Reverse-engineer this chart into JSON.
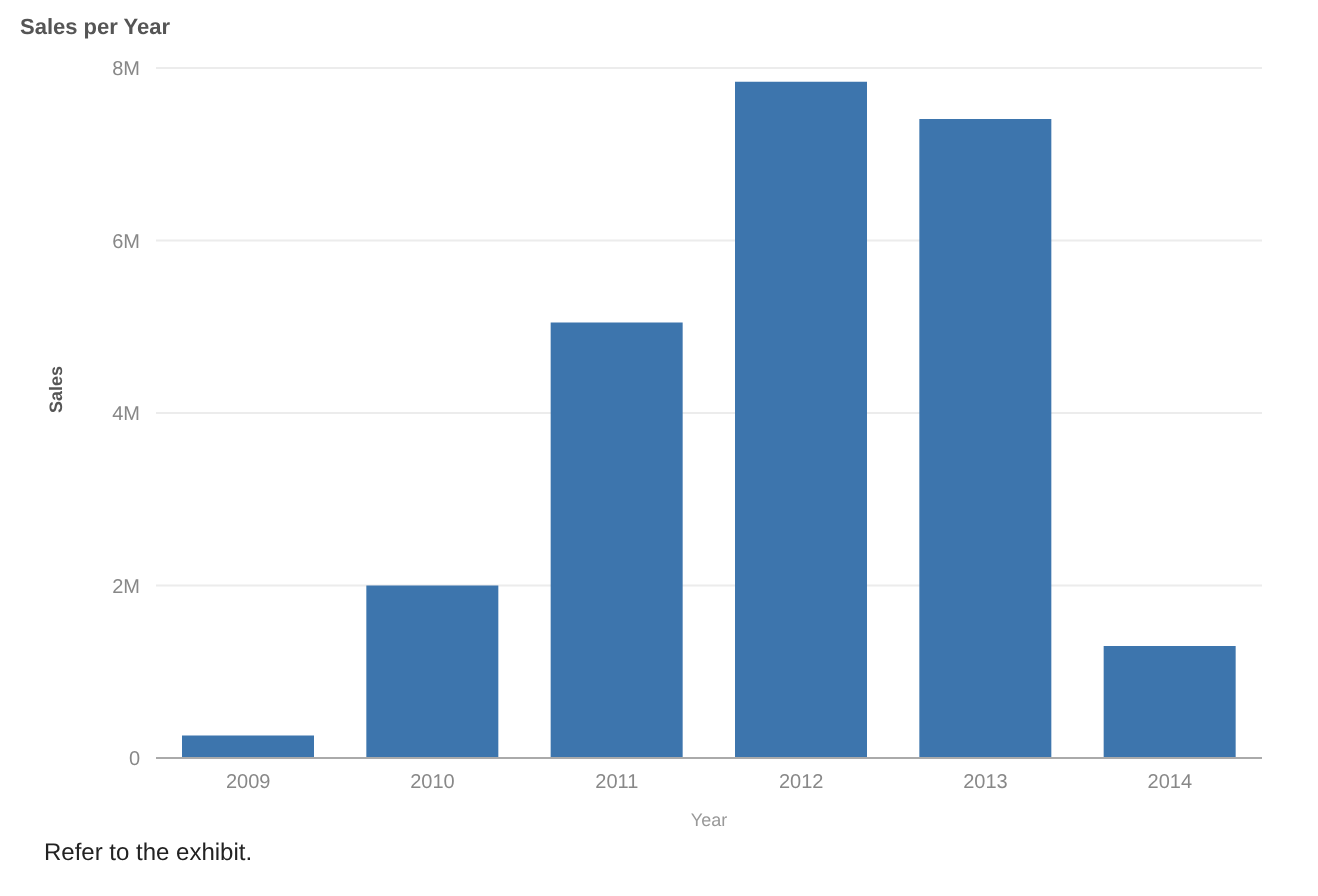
{
  "chart_data": {
    "type": "bar",
    "title": "Sales per Year",
    "xlabel": "Year",
    "ylabel": "Sales",
    "categories": [
      "2009",
      "2010",
      "2011",
      "2012",
      "2013",
      "2014"
    ],
    "values": [
      260000,
      2000000,
      5050000,
      7840000,
      7410000,
      1300000
    ],
    "color": "#3d75ad",
    "ylim": [
      0,
      8000000
    ],
    "yticks": [
      {
        "value": 0,
        "label": "0"
      },
      {
        "value": 2000000,
        "label": "2M"
      },
      {
        "value": 4000000,
        "label": "4M"
      },
      {
        "value": 6000000,
        "label": "6M"
      },
      {
        "value": 8000000,
        "label": "8M"
      }
    ],
    "grid": "y",
    "annotations": [
      "Refer to the exhibit."
    ]
  }
}
